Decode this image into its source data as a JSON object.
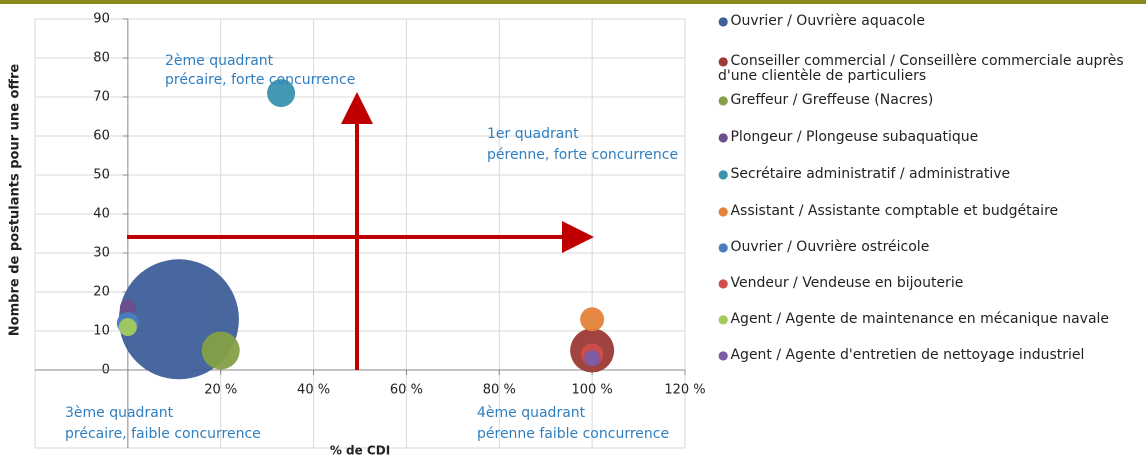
{
  "chart_data": {
    "type": "bubble",
    "x_label": "% de CDI",
    "y_label": "Nombre de postulants pour une offre",
    "xlim": [
      -20,
      120
    ],
    "xticks": [
      {
        "value": 20,
        "label": "20 %"
      },
      {
        "value": 40,
        "label": "40 %"
      },
      {
        "value": 60,
        "label": "60 %"
      },
      {
        "value": 80,
        "label": "80 %"
      },
      {
        "value": 100,
        "label": "100 %"
      },
      {
        "value": 120,
        "label": "120 %"
      }
    ],
    "ylim": [
      -20,
      90
    ],
    "yticks": [
      0,
      10,
      20,
      30,
      40,
      50,
      60,
      70,
      80,
      90
    ],
    "grid": true,
    "legend": "right",
    "annotations": [
      [
        "2ème quadrant",
        "précaire, forte concurrence"
      ],
      [
        "1er quadrant",
        "pérenne, forte concurrence"
      ],
      [
        "3ème quadrant",
        "précaire, faible concurrence"
      ],
      [
        "4ème quadrant",
        "pérenne faible concurrence"
      ]
    ],
    "series": [
      {
        "name": "Ouvrier / Ouvrière aquacole",
        "color": "#3e5f99",
        "x": 11,
        "y": 13,
        "size": 3600
      },
      {
        "name": "Conseiller commercial / Conseillère commerciale auprès d'une clientèle de particuliers",
        "color": "#9c3a36",
        "x": 100,
        "y": 5,
        "size": 484
      },
      {
        "name": "Greffeur / Greffeuse (Nacres)",
        "color": "#84a046",
        "x": 20,
        "y": 5,
        "size": 361
      },
      {
        "name": "Plongeur / Plongeuse subaquatique",
        "color": "#6b4f8c",
        "x": 0,
        "y": 16,
        "size": 64
      },
      {
        "name": "Secrétaire administratif / administrative",
        "color": "#3993ad",
        "x": 33,
        "y": 71,
        "size": 196
      },
      {
        "name": "Assistant / Assistante comptable et budgétaire",
        "color": "#e4823a",
        "x": 100,
        "y": 13,
        "size": 144
      },
      {
        "name": "Ouvrier / Ouvrière ostréicole",
        "color": "#4a7cc0",
        "x": 0,
        "y": 12,
        "size": 121
      },
      {
        "name": "Vendeur / Vendeuse en bijouterie",
        "color": "#d04e4c",
        "x": 100,
        "y": 4,
        "size": 121
      },
      {
        "name": "Agent / Agente de maintenance en mécanique navale",
        "color": "#a3cb5e",
        "x": 0,
        "y": 11,
        "size": 81
      },
      {
        "name": "Agent / Agente d'entretien de nettoyage industriel",
        "color": "#7a5ca6",
        "x": 100,
        "y": 3,
        "size": 64
      }
    ]
  }
}
